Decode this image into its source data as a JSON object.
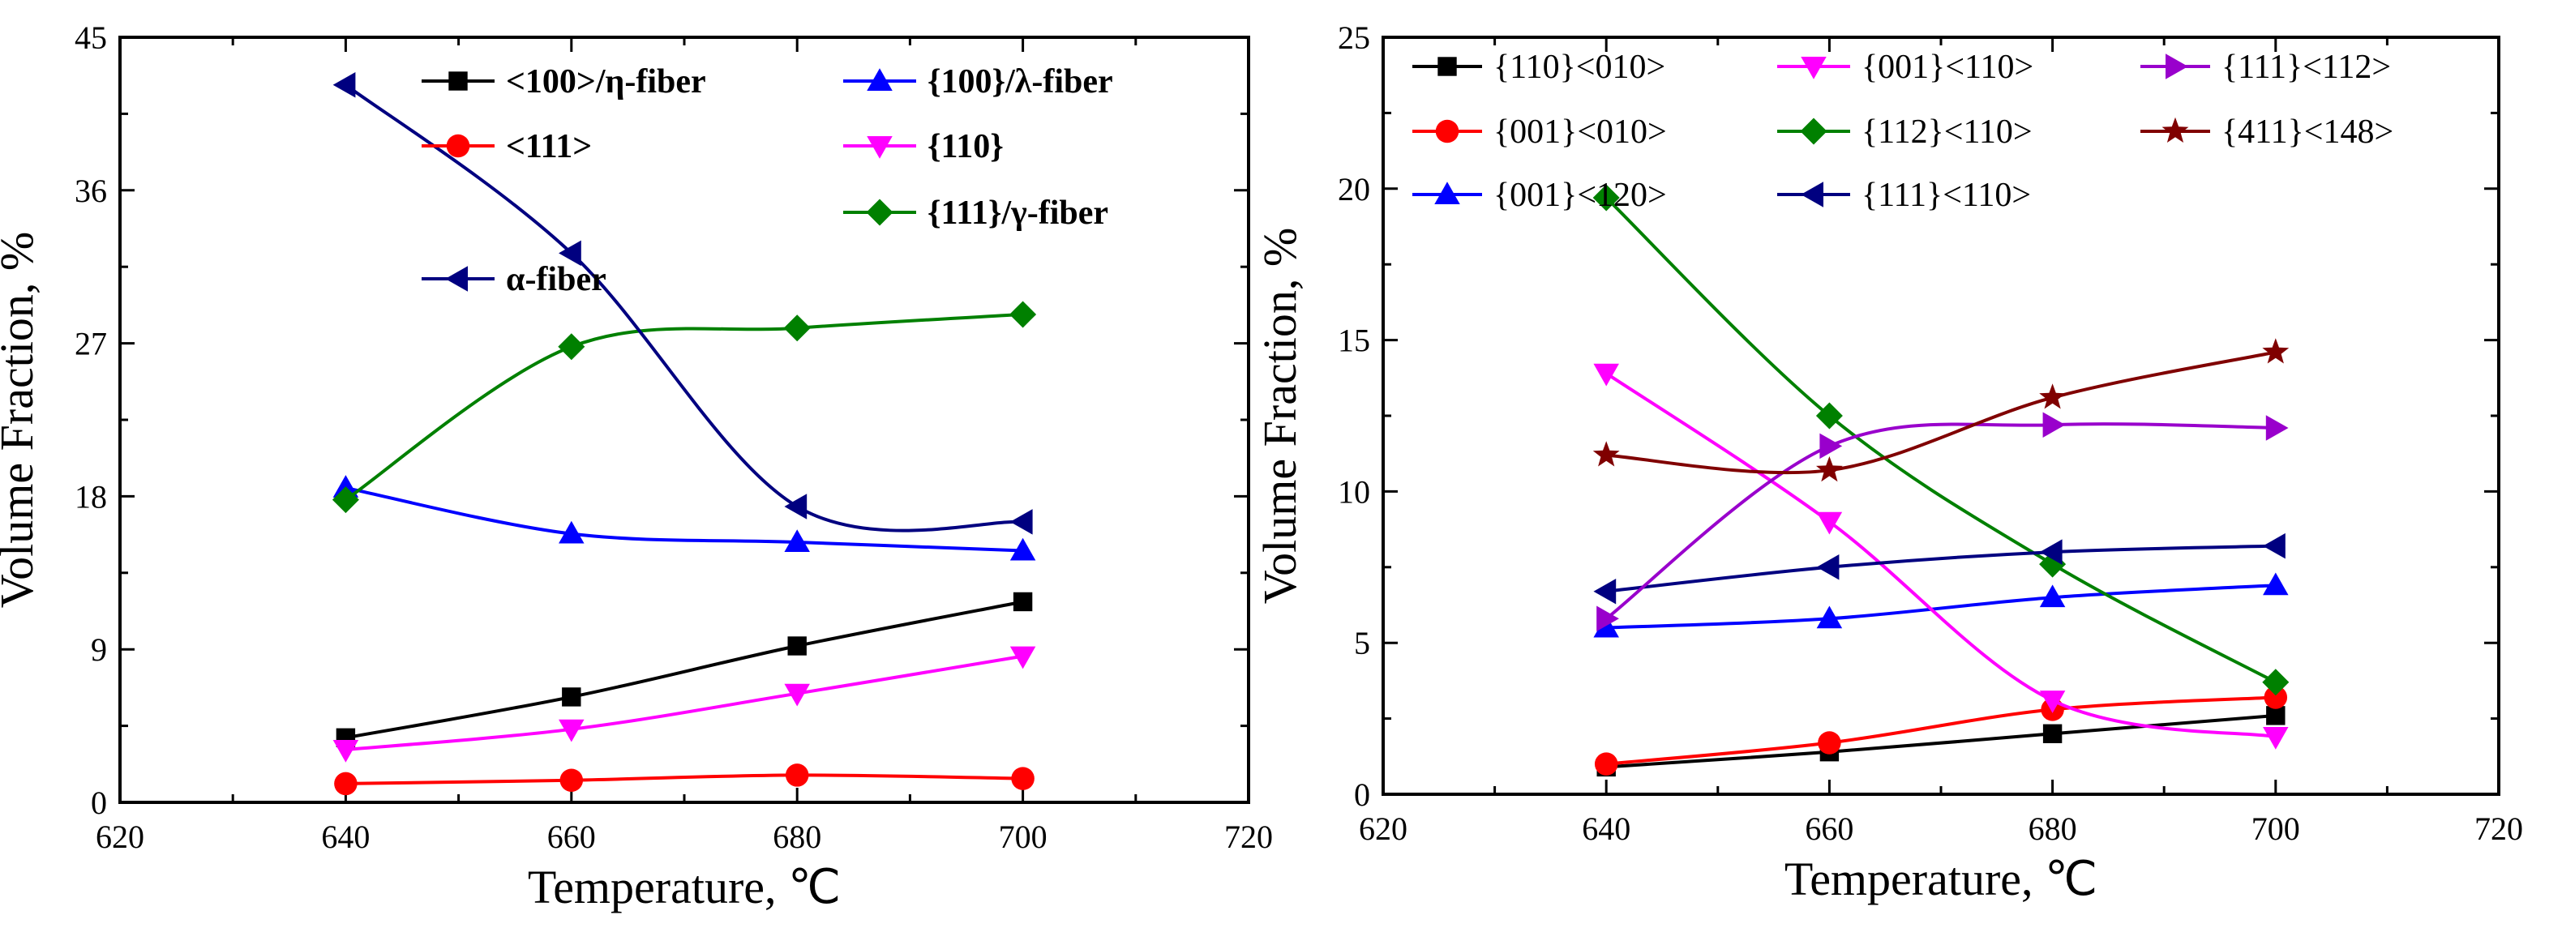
{
  "chart_data": [
    {
      "type": "line",
      "title": "",
      "xlabel": "Temperature, ℃",
      "ylabel": "Volume Fraction, %",
      "xlim": [
        620,
        720
      ],
      "ylim": [
        0,
        45
      ],
      "xticks": [
        620,
        640,
        660,
        680,
        700,
        720
      ],
      "yticks": [
        0,
        9,
        18,
        27,
        36,
        45
      ],
      "x": [
        640,
        660,
        680,
        700
      ],
      "legend_position": "top-right",
      "series": [
        {
          "name": "<100>/η-fiber",
          "color": "#000000",
          "marker": "square",
          "values": [
            3.8,
            6.2,
            9.2,
            11.8
          ]
        },
        {
          "name": "<111>",
          "color": "#ff0000",
          "marker": "circle",
          "values": [
            1.1,
            1.3,
            1.6,
            1.4
          ]
        },
        {
          "name": "{100}/λ-fiber",
          "color": "#0000ff",
          "marker": "triangle-up",
          "values": [
            18.5,
            15.8,
            15.3,
            14.8
          ]
        },
        {
          "name": "{110}",
          "color": "#ff00ff",
          "marker": "triangle-down",
          "values": [
            3.1,
            4.3,
            6.4,
            8.6
          ]
        },
        {
          "name": "{111}/γ-fiber",
          "color": "#008000",
          "marker": "diamond",
          "values": [
            17.8,
            26.8,
            27.9,
            28.7
          ]
        },
        {
          "name": "α-fiber",
          "color": "#000080",
          "marker": "triangle-left",
          "values": [
            42.2,
            32.3,
            17.4,
            16.5
          ]
        }
      ]
    },
    {
      "type": "line",
      "title": "",
      "xlabel": "Temperature, ℃",
      "ylabel": "Volume Fraction, %",
      "xlim": [
        620,
        720
      ],
      "ylim": [
        0,
        25
      ],
      "xticks": [
        620,
        640,
        660,
        680,
        700,
        720
      ],
      "yticks": [
        0,
        5,
        10,
        15,
        20,
        25
      ],
      "x": [
        640,
        660,
        680,
        700
      ],
      "legend_position": "top",
      "series": [
        {
          "name": "{110}<010>",
          "color": "#000000",
          "marker": "square",
          "values": [
            0.9,
            1.4,
            2.0,
            2.6
          ]
        },
        {
          "name": "{001}<010>",
          "color": "#ff0000",
          "marker": "circle",
          "values": [
            1.0,
            1.7,
            2.8,
            3.2
          ]
        },
        {
          "name": "{001}<120>",
          "color": "#0000ff",
          "marker": "triangle-up",
          "values": [
            5.5,
            5.8,
            6.5,
            6.9
          ]
        },
        {
          "name": "{001}<110>",
          "color": "#ff00ff",
          "marker": "triangle-down",
          "values": [
            13.9,
            9.0,
            3.1,
            1.9
          ]
        },
        {
          "name": "{112}<110>",
          "color": "#008000",
          "marker": "diamond",
          "values": [
            19.7,
            12.5,
            7.6,
            3.7
          ]
        },
        {
          "name": "{111}<110>",
          "color": "#000080",
          "marker": "triangle-left",
          "values": [
            6.7,
            7.5,
            8.0,
            8.2
          ]
        },
        {
          "name": "{111}<112>",
          "color": "#9900cc",
          "marker": "triangle-right",
          "values": [
            5.8,
            11.5,
            12.2,
            12.1
          ]
        },
        {
          "name": "{411}<148>",
          "color": "#800000",
          "marker": "star",
          "values": [
            11.2,
            10.7,
            13.1,
            14.6
          ]
        }
      ]
    }
  ]
}
